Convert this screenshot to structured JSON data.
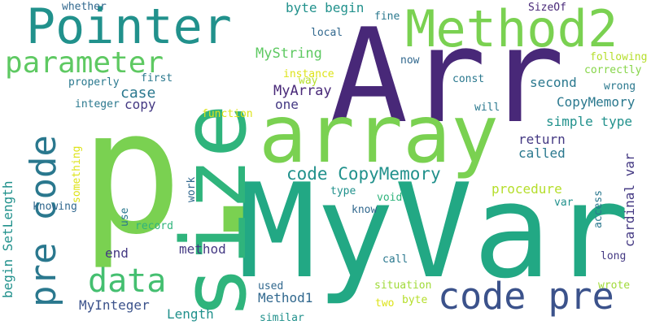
{
  "words": [
    {
      "text": "p.",
      "color": "#7ad151"
    },
    {
      "text": "Arr",
      "color": "#482878"
    },
    {
      "text": "MyVar",
      "color": "#22a884"
    },
    {
      "text": "size",
      "color": "#2fb47c"
    },
    {
      "text": "array",
      "color": "#7ad151"
    },
    {
      "text": "Method2",
      "color": "#7ad151"
    },
    {
      "text": "Pointer",
      "color": "#21918c"
    },
    {
      "text": "code pre",
      "color": "#3b528b"
    },
    {
      "text": "pre code",
      "color": "#2a788e"
    },
    {
      "text": "parameter",
      "color": "#5ec962"
    },
    {
      "text": "data",
      "color": "#44bf70"
    },
    {
      "text": "code CopyMemory",
      "color": "#21918c"
    },
    {
      "text": "MyArray",
      "color": "#482878"
    },
    {
      "text": "MyString",
      "color": "#5ec962"
    },
    {
      "text": "byte begin",
      "color": "#21918c"
    },
    {
      "text": "whether",
      "color": "#31688e"
    },
    {
      "text": "fine",
      "color": "#2a788e"
    },
    {
      "text": "SizeOf",
      "color": "#482878"
    },
    {
      "text": "local",
      "color": "#31688e"
    },
    {
      "text": "following",
      "color": "#b5de2b"
    },
    {
      "text": "now",
      "color": "#31688e"
    },
    {
      "text": "correctly",
      "color": "#86d549"
    },
    {
      "text": "instance",
      "color": "#dde318"
    },
    {
      "text": "properly",
      "color": "#2a788e"
    },
    {
      "text": "first",
      "color": "#2a788e"
    },
    {
      "text": "way",
      "color": "#b5de2b"
    },
    {
      "text": "const",
      "color": "#2a788e"
    },
    {
      "text": "wrong",
      "color": "#2a788e"
    },
    {
      "text": "second",
      "color": "#2a788e"
    },
    {
      "text": "integer",
      "color": "#2a788e"
    },
    {
      "text": "case",
      "color": "#2a788e"
    },
    {
      "text": "copy",
      "color": "#443983"
    },
    {
      "text": "one",
      "color": "#443983"
    },
    {
      "text": "will",
      "color": "#2a788e"
    },
    {
      "text": "CopyMemory",
      "color": "#2a788e"
    },
    {
      "text": "function",
      "color": "#dde318"
    },
    {
      "text": "simple type",
      "color": "#21918c"
    },
    {
      "text": "something",
      "color": "#dde318"
    },
    {
      "text": "return",
      "color": "#443983"
    },
    {
      "text": "called",
      "color": "#2a788e"
    },
    {
      "text": "cardinal var",
      "color": "#443983"
    },
    {
      "text": "begin SetLength",
      "color": "#21918c"
    },
    {
      "text": "procedure",
      "color": "#b5de2b"
    },
    {
      "text": "type",
      "color": "#21918c"
    },
    {
      "text": "work",
      "color": "#31688e"
    },
    {
      "text": "void",
      "color": "#2fb47c"
    },
    {
      "text": "knowing",
      "color": "#31688e"
    },
    {
      "text": "know",
      "color": "#31688e"
    },
    {
      "text": "use",
      "color": "#2a788e"
    },
    {
      "text": "var",
      "color": "#21918c"
    },
    {
      "text": "access",
      "color": "#2a788e"
    },
    {
      "text": "record",
      "color": "#2fb47c"
    },
    {
      "text": "end",
      "color": "#443983"
    },
    {
      "text": "method",
      "color": "#443983"
    },
    {
      "text": "long",
      "color": "#443983"
    },
    {
      "text": "call",
      "color": "#2a788e"
    },
    {
      "text": "used",
      "color": "#31688e"
    },
    {
      "text": "Method1",
      "color": "#31688e"
    },
    {
      "text": "situation",
      "color": "#a0da39"
    },
    {
      "text": "wrote",
      "color": "#a0da39"
    },
    {
      "text": "MyInteger",
      "color": "#3b528b"
    },
    {
      "text": "Length",
      "color": "#21918c"
    },
    {
      "text": "two",
      "color": "#dde318"
    },
    {
      "text": "byte",
      "color": "#b5de2b"
    },
    {
      "text": "similar",
      "color": "#21918c"
    }
  ]
}
